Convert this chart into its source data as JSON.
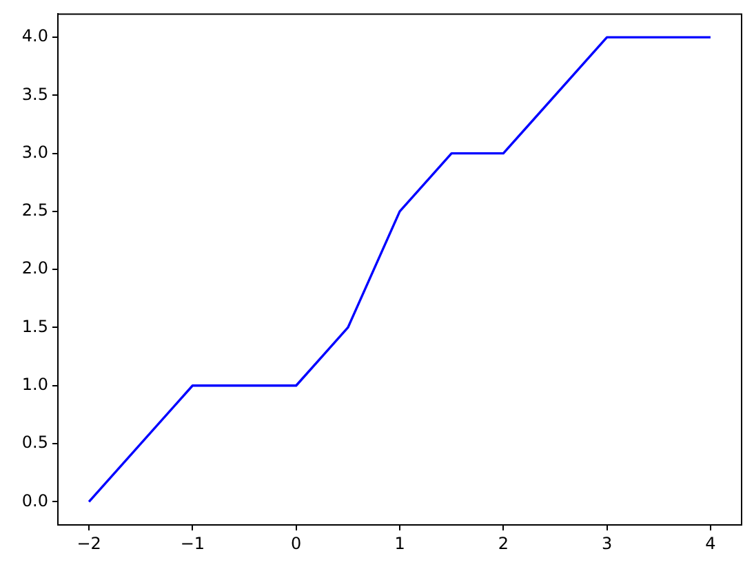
{
  "chart_data": {
    "type": "line",
    "x": [
      -2,
      -1,
      0,
      0.5,
      1,
      1.5,
      2,
      3,
      4
    ],
    "series": [
      {
        "color": "#0000ff",
        "values": [
          0,
          1,
          1,
          1.5,
          2.5,
          3,
          3,
          4,
          4
        ]
      }
    ],
    "xlim": [
      -2.3,
      4.3
    ],
    "ylim": [
      -0.2,
      4.2
    ],
    "xticks": [
      {
        "value": -2,
        "label": "−2"
      },
      {
        "value": -1,
        "label": "−1"
      },
      0,
      1,
      2,
      3,
      4
    ],
    "yticks": [
      {
        "value": 0,
        "label": "0.0"
      },
      {
        "value": 0.5,
        "label": "0.5"
      },
      {
        "value": 1,
        "label": "1.0"
      },
      {
        "value": 1.5,
        "label": "1.5"
      },
      {
        "value": 2,
        "label": "2.0"
      },
      {
        "value": 2.5,
        "label": "2.5"
      },
      {
        "value": 3,
        "label": "3.0"
      },
      {
        "value": 3.5,
        "label": "3.5"
      },
      {
        "value": 4,
        "label": "4.0"
      }
    ],
    "marker": "none",
    "line_style": "solid"
  }
}
